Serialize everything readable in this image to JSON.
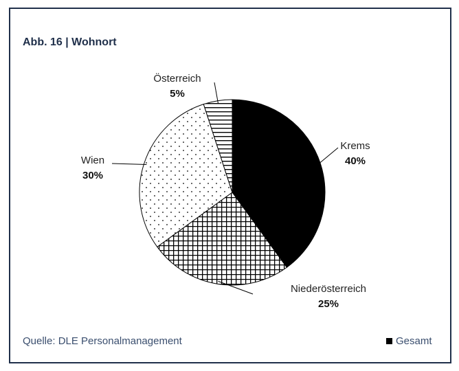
{
  "chart_data": {
    "type": "pie",
    "title": "Abb. 16 | Wohnort",
    "categories": [
      "Krems",
      "Niederösterreich",
      "Wien",
      "Österreich"
    ],
    "series": [
      {
        "name": "Gesamt",
        "color": "#000000",
        "values": [
          40,
          25,
          30,
          5
        ],
        "value_labels": [
          "40%",
          "25%",
          "30%",
          "5%"
        ]
      }
    ],
    "patterns": [
      "solid",
      "crosshatch",
      "dots",
      "hlines"
    ],
    "source": "Quelle: DLE Personalmanagement",
    "legend": "bottom-right"
  }
}
